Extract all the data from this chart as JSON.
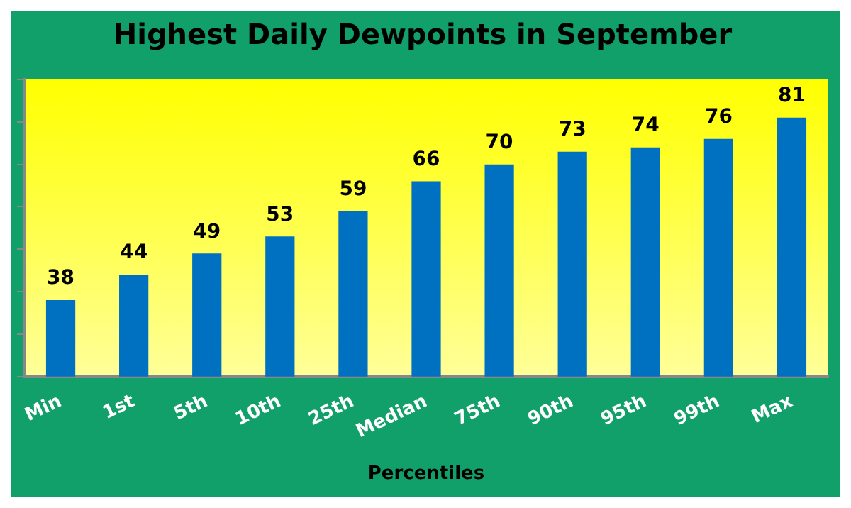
{
  "chart_data": {
    "type": "bar",
    "title": "Highest Daily Dewpoints in September",
    "xlabel": "Percentiles",
    "categories": [
      "Min",
      "1st",
      "5th",
      "10th",
      "25th",
      "Median",
      "75th",
      "90th",
      "95th",
      "99th",
      "Max"
    ],
    "values": [
      38,
      44,
      49,
      53,
      59,
      66,
      70,
      73,
      74,
      76,
      81
    ],
    "color": "#0070c0",
    "ylim": [
      20,
      90
    ],
    "yticks": [
      {
        "value": 20,
        "label": null
      },
      {
        "value": 30,
        "label": null
      },
      {
        "value": 40,
        "label": null
      },
      {
        "value": 50,
        "label": null
      },
      {
        "value": 60,
        "label": null
      },
      {
        "value": 70,
        "label": null
      },
      {
        "value": 80,
        "label": null
      },
      {
        "value": 90,
        "label": null
      }
    ],
    "tick_labels": "x",
    "data_labels": true,
    "grid": false,
    "legend": false
  }
}
